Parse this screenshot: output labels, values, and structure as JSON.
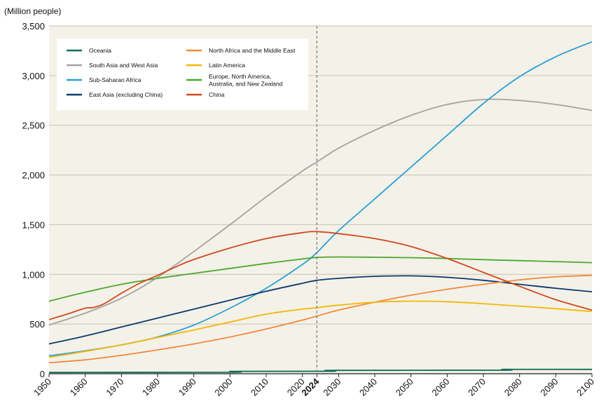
{
  "chart_data": {
    "type": "line",
    "unit_label": "(Million people)",
    "title": "",
    "xlabel": "",
    "ylabel": "",
    "xlim": [
      1950,
      2100
    ],
    "ylim": [
      0,
      3500
    ],
    "x_ticks": [
      1950,
      1960,
      1970,
      1980,
      1990,
      2000,
      2010,
      2020,
      2024,
      2030,
      2040,
      2050,
      2060,
      2070,
      2080,
      2090,
      2100
    ],
    "y_ticks": [
      0,
      500,
      1000,
      1500,
      2000,
      2500,
      3000,
      3500
    ],
    "y_tick_labels": [
      "0",
      "500",
      "1,000",
      "1,500",
      "2,000",
      "2,500",
      "3,000",
      "3,500"
    ],
    "highlight": {
      "year": 2024,
      "label": "2024",
      "color": "#d7262e",
      "line": "dashed"
    },
    "background": "#f4f1e8",
    "grid": "horizontal",
    "legend_placement": "top-left",
    "series": [
      {
        "name": "Oceania",
        "color": "#0f6b5b",
        "x": [
          1950,
          2000,
          2001,
          2028,
          2029,
          2075,
          2076,
          2100
        ],
        "y": [
          13,
          15,
          24,
          25,
          34,
          35,
          44,
          44
        ]
      },
      {
        "name": "South Asia and West Asia",
        "color": "#a3a3a3",
        "x": [
          1950,
          1960,
          1970,
          1980,
          1990,
          2000,
          2010,
          2020,
          2024,
          2030,
          2040,
          2050,
          2060,
          2070,
          2080,
          2090,
          2100
        ],
        "y": [
          490,
          610,
          760,
          970,
          1230,
          1500,
          1780,
          2040,
          2130,
          2270,
          2450,
          2600,
          2710,
          2760,
          2750,
          2710,
          2650
        ]
      },
      {
        "name": "Sub-Saharan Africa",
        "color": "#2a9fd6",
        "x": [
          1950,
          1960,
          1970,
          1980,
          1990,
          2000,
          2010,
          2020,
          2024,
          2030,
          2040,
          2050,
          2060,
          2070,
          2080,
          2090,
          2100
        ],
        "y": [
          180,
          230,
          290,
          370,
          490,
          660,
          860,
          1100,
          1220,
          1440,
          1760,
          2080,
          2400,
          2720,
          2990,
          3190,
          3340
        ]
      },
      {
        "name": "East Asia (excluding China)",
        "color": "#0b3a6e",
        "x": [
          1950,
          1960,
          1970,
          1980,
          1990,
          2000,
          2010,
          2020,
          2024,
          2030,
          2040,
          2050,
          2060,
          2070,
          2080,
          2090,
          2100
        ],
        "y": [
          300,
          380,
          470,
          560,
          650,
          740,
          830,
          910,
          940,
          960,
          980,
          985,
          970,
          940,
          900,
          860,
          825
        ]
      },
      {
        "name": "North Africa and the Middle East",
        "color": "#ef8a3c",
        "x": [
          1950,
          1960,
          1970,
          1980,
          1990,
          2000,
          2010,
          2020,
          2024,
          2030,
          2040,
          2050,
          2060,
          2070,
          2080,
          2090,
          2100
        ],
        "y": [
          110,
          140,
          185,
          240,
          300,
          370,
          450,
          540,
          580,
          640,
          720,
          790,
          850,
          900,
          945,
          975,
          990
        ]
      },
      {
        "name": "Latin America",
        "color": "#f2b705",
        "x": [
          1950,
          1960,
          1970,
          1980,
          1990,
          2000,
          2010,
          2020,
          2024,
          2030,
          2040,
          2050,
          2060,
          2070,
          2080,
          2090,
          2100
        ],
        "y": [
          165,
          225,
          290,
          365,
          440,
          520,
          600,
          650,
          665,
          690,
          720,
          730,
          725,
          705,
          680,
          655,
          625
        ]
      },
      {
        "name": "Europe, North America, Australia, and New Zealand",
        "color": "#4ba82e",
        "x": [
          1950,
          1960,
          1970,
          1980,
          1990,
          2000,
          2010,
          2020,
          2024,
          2030,
          2040,
          2050,
          2060,
          2070,
          2080,
          2090,
          2100
        ],
        "y": [
          730,
          820,
          900,
          960,
          1010,
          1060,
          1110,
          1155,
          1170,
          1175,
          1172,
          1168,
          1160,
          1148,
          1138,
          1128,
          1118
        ]
      },
      {
        "name": "China",
        "color": "#d04a1c",
        "x": [
          1950,
          1955,
          1960,
          1962,
          1965,
          1970,
          1975,
          1980,
          1985,
          1990,
          2000,
          2010,
          2020,
          2024,
          2030,
          2040,
          2050,
          2060,
          2070,
          2080,
          2090,
          2100
        ],
        "y": [
          545,
          600,
          660,
          665,
          700,
          810,
          910,
          990,
          1075,
          1150,
          1265,
          1360,
          1420,
          1430,
          1410,
          1360,
          1280,
          1160,
          1020,
          880,
          745,
          640
        ]
      }
    ]
  }
}
